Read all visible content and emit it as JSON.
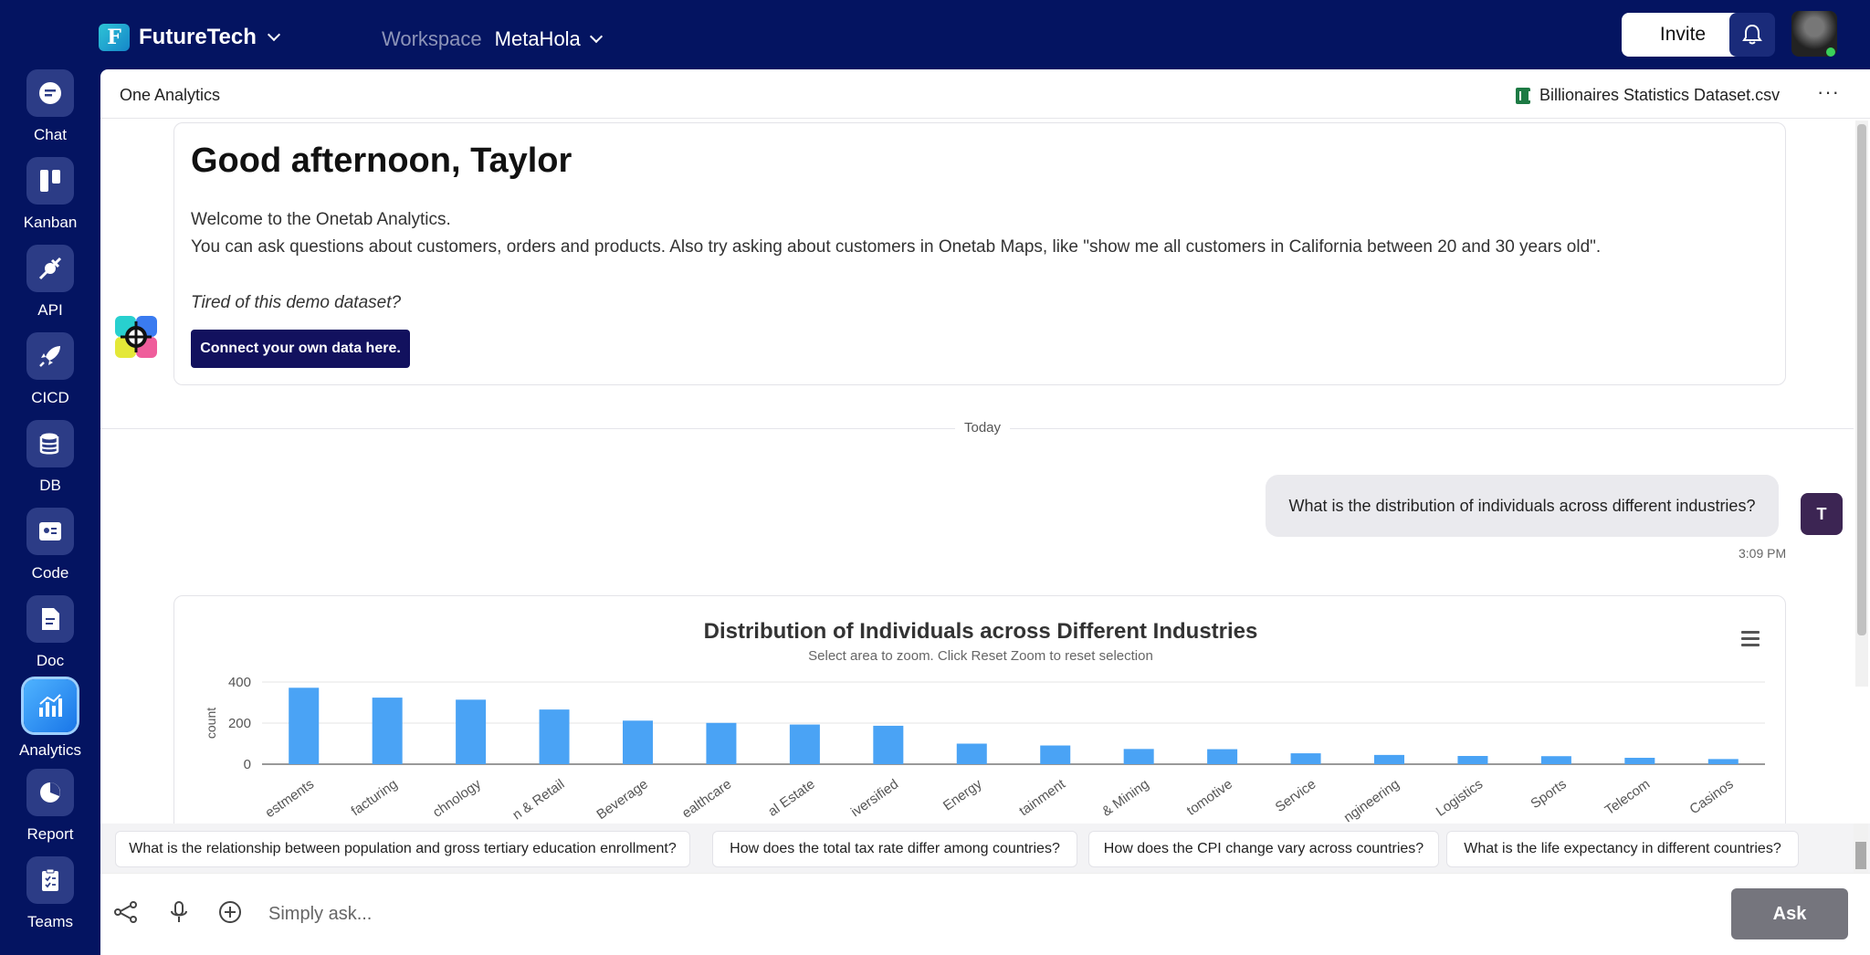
{
  "topbar": {
    "brand": "FutureTech",
    "brand_letter": "F",
    "workspace_label": "Workspace",
    "workspace_name": "MetaHola",
    "invite_label": "Invite",
    "bell_icon": "bell-icon"
  },
  "rail": {
    "items": [
      {
        "label": "Chat",
        "icon": "chat-icon"
      },
      {
        "label": "Kanban",
        "icon": "kanban-icon"
      },
      {
        "label": "API",
        "icon": "plug-icon"
      },
      {
        "label": "CICD",
        "icon": "rocket-icon"
      },
      {
        "label": "DB",
        "icon": "database-icon"
      },
      {
        "label": "Code",
        "icon": "code-icon"
      },
      {
        "label": "Doc",
        "icon": "document-icon"
      },
      {
        "label": "Analytics",
        "icon": "analytics-icon",
        "active": true
      },
      {
        "label": "Report",
        "icon": "pie-chart-icon"
      },
      {
        "label": "Teams",
        "icon": "clipboard-icon"
      }
    ]
  },
  "header": {
    "title": "One Analytics",
    "dataset": "Billionaires Statistics Dataset.csv",
    "more": "···"
  },
  "welcome": {
    "greeting": "Good afternoon, Taylor",
    "line1": "Welcome to the Onetab Analytics.",
    "line2": "You can ask questions about customers, orders and products. Also try asking about customers in Onetab Maps, like \"show me all customers in California between 20 and 30 years old\".",
    "tired": "Tired of this demo dataset?",
    "connect_label": "Connect your own data here."
  },
  "divider": {
    "label": "Today"
  },
  "message": {
    "text": "What is the distribution of individuals across different industries?",
    "avatar": "T",
    "time": "3:09 PM"
  },
  "chart_data": {
    "type": "bar",
    "title": "Distribution of Individuals across Different Industries",
    "subtitle": "Select area to zoom. Click Reset Zoom to reset selection",
    "ylabel": "count",
    "xlabel": "",
    "ylim": [
      0,
      400
    ],
    "yticks": [
      0,
      200,
      400
    ],
    "categories": [
      "Finance & Investments",
      "Manufacturing",
      "Technology",
      "Fashion & Retail",
      "Food & Beverage",
      "Healthcare",
      "Real Estate",
      "Diversified",
      "Energy",
      "Media & Entertainment",
      "Metals & Mining",
      "Automotive",
      "Service",
      "Construction & Engineering",
      "Logistics",
      "Sports",
      "Telecom",
      "Gambling & Casinos"
    ],
    "tick_labels": [
      "estments",
      "facturing",
      "chnology",
      "n & Retail",
      "Beverage",
      "ealthcare",
      "al Estate",
      "iversified",
      "Energy",
      "tainment",
      "& Mining",
      "tomotive",
      "Service",
      "ngineering",
      "Logistics",
      "Sports",
      "Telecom",
      "Casinos"
    ],
    "values": [
      372,
      324,
      314,
      266,
      212,
      201,
      193,
      187,
      100,
      91,
      74,
      73,
      53,
      45,
      40,
      39,
      31,
      25
    ],
    "color": "#4aa3f5",
    "grid": true,
    "menu_icon": "hamburger-icon"
  },
  "suggestions": [
    "What is the relationship between population and gross tertiary education enrollment?",
    "How does the total tax rate differ among countries?",
    "How does the CPI change vary across countries?",
    "What is the life expectancy in different countries?"
  ],
  "input": {
    "placeholder": "Simply ask...",
    "ask_label": "Ask",
    "icons": [
      "share-icon",
      "microphone-icon",
      "plus-circle-icon"
    ]
  }
}
